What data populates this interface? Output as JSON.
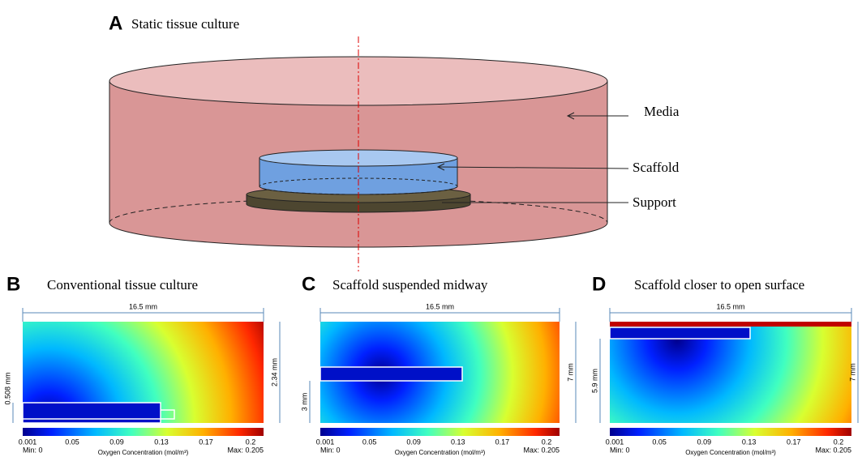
{
  "panel_a": {
    "label": "A",
    "title": "Static tissue culture",
    "callouts": [
      "Media",
      "Scaffold",
      "Support"
    ]
  },
  "panels": [
    {
      "label": "B",
      "title": "Conventional tissue culture",
      "width_dim": "16.5 mm",
      "left_dim": "0.508 mm",
      "right_dim": "2.34 mm",
      "colorbar": {
        "ticks": [
          "0.001",
          "0.05",
          "0.09",
          "0.13",
          "0.17",
          "0.2"
        ],
        "min": "Min: 0",
        "max": "Max: 0.205",
        "title": "Oxygen Concentration (mol/m³)"
      }
    },
    {
      "label": "C",
      "title": "Scaffold suspended midway",
      "width_dim": "16.5 mm",
      "left_dim": "3 mm",
      "right_dim": "7 mm",
      "colorbar": {
        "ticks": [
          "0.001",
          "0.05",
          "0.09",
          "0.13",
          "0.17",
          "0.2"
        ],
        "min": "Min: 0",
        "max": "Max: 0.205",
        "title": "Oxygen Concentration (mol/m³)"
      }
    },
    {
      "label": "D",
      "title": "Scaffold closer to open surface",
      "width_dim": "16.5 mm",
      "left_dim": "5.9 mm",
      "right_dim": "7 mm",
      "colorbar": {
        "ticks": [
          "0.001",
          "0.05",
          "0.09",
          "0.13",
          "0.17",
          "0.2"
        ],
        "min": "Min: 0",
        "max": "Max: 0.205",
        "title": "Oxygen Concentration (mol/m³)"
      }
    }
  ]
}
